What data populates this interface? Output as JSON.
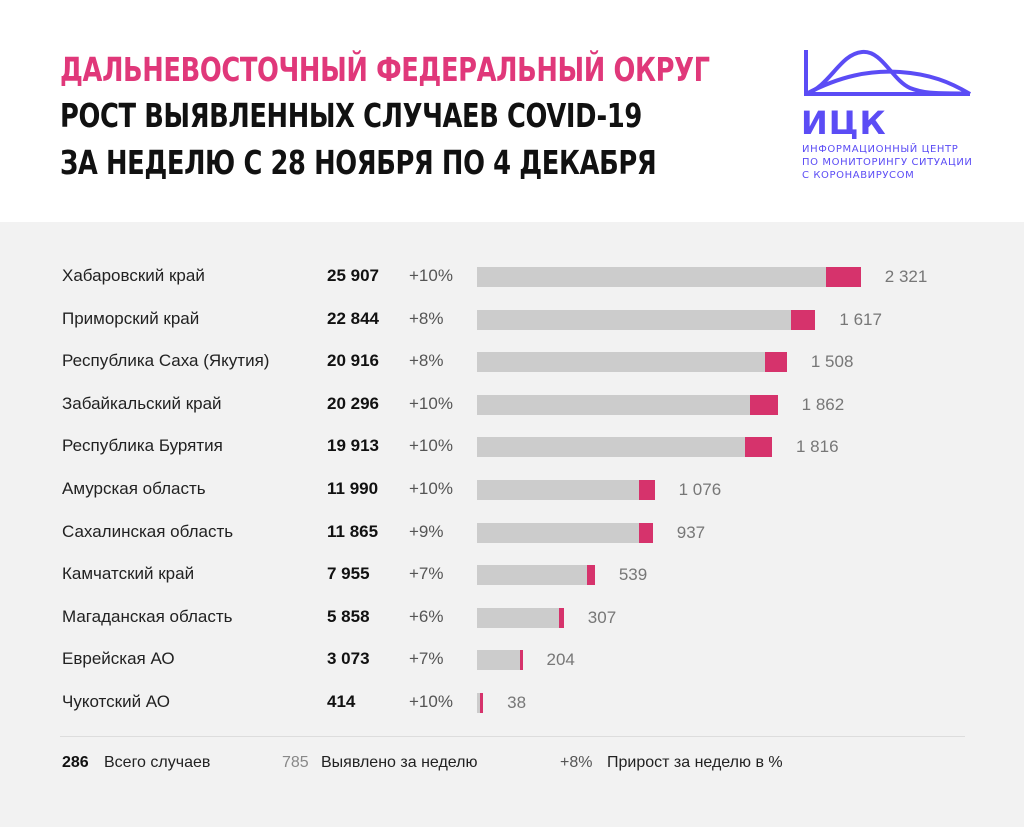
{
  "header": {
    "title_line1": "ДАЛЬНЕВОСТОЧНЫЙ ФЕДЕРАЛЬНЫЙ ОКРУГ",
    "title_line2": "РОСТ ВЫЯВЛЕННЫХ СЛУЧАЕВ COVID-19",
    "title_line3": "ЗА НЕДЕЛЮ С 28 НОЯБРЯ ПО 4 ДЕКАБРЯ",
    "title_accent_color": "#e0387a"
  },
  "logo": {
    "name": "ИЦК",
    "sub1": "ИНФОРМАЦИОННЫЙ ЦЕНТР",
    "sub2": "ПО МОНИТОРИНГУ СИТУАЦИИ",
    "sub3": "С КОРОНАВИРУСОМ",
    "color": "#5b4cf5"
  },
  "legend": {
    "total_value": "286",
    "total_label": "Всего случаев",
    "week_value": "785",
    "week_label": "Выявлено за неделю",
    "pct_value": "+8%",
    "pct_label": "Прирост за неделю в %"
  },
  "colors": {
    "bar_total": "#cccccc",
    "bar_new": "#d6336c",
    "panel_bg": "#f2f2f2"
  },
  "chart_data": {
    "type": "bar",
    "orientation": "horizontal",
    "stacked": true,
    "categories": [
      "Хабаровский край",
      "Приморский край",
      "Республика Саха (Якутия)",
      "Забайкальский край",
      "Республика Бурятия",
      "Амурская область",
      "Сахалинская область",
      "Камчатский край",
      "Магаданская область",
      "Еврейская АО",
      "Чукотский АО"
    ],
    "totals_text": [
      "25 907",
      "22 844",
      "20 916",
      "20 296",
      "19 913",
      "11 990",
      "11 865",
      "7 955",
      "5 858",
      "3 073",
      "414"
    ],
    "totals": [
      25907,
      22844,
      20916,
      20296,
      19913,
      11990,
      11865,
      7955,
      5858,
      3073,
      414
    ],
    "weekly_text": [
      "2 321",
      "1 617",
      "1 508",
      "1 862",
      "1 816",
      "1 076",
      "937",
      "539",
      "307",
      "204",
      "38"
    ],
    "weekly": [
      2321,
      1617,
      1508,
      1862,
      1816,
      1076,
      937,
      539,
      307,
      204,
      38
    ],
    "growth": [
      "+10%",
      "+8%",
      "+8%",
      "+10%",
      "+10%",
      "+10%",
      "+9%",
      "+7%",
      "+6%",
      "+7%",
      "+10%"
    ]
  }
}
